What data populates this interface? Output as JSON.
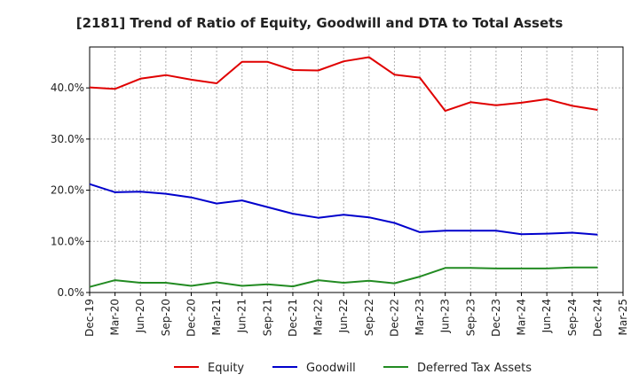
{
  "chart_data": {
    "type": "line",
    "title": "[2181]  Trend of Ratio of Equity, Goodwill and DTA to Total Assets",
    "xlabel": "",
    "ylabel": "",
    "ylim": [
      0,
      48
    ],
    "yticks": [
      0,
      10,
      20,
      30,
      40
    ],
    "ytick_labels": [
      "0.0%",
      "10.0%",
      "20.0%",
      "30.0%",
      "40.0%"
    ],
    "x_tick_labels": [
      "Dec-19",
      "Mar-20",
      "Jun-20",
      "Sep-20",
      "Dec-20",
      "Mar-21",
      "Jun-21",
      "Sep-21",
      "Dec-21",
      "Mar-22",
      "Jun-22",
      "Sep-22",
      "Dec-22",
      "Mar-23",
      "Jun-23",
      "Sep-23",
      "Dec-23",
      "Mar-24",
      "Jun-24",
      "Sep-24",
      "Dec-24",
      "Mar-25"
    ],
    "categories": [
      "Dec-19",
      "Mar-20",
      "Jun-20",
      "Sep-20",
      "Dec-20",
      "Mar-21",
      "Jun-21",
      "Sep-21",
      "Dec-21",
      "Mar-22",
      "Jun-22",
      "Sep-22",
      "Dec-22",
      "Mar-23",
      "Jun-23",
      "Sep-23",
      "Dec-23",
      "Mar-24",
      "Jun-24",
      "Sep-24",
      "Dec-24"
    ],
    "grid": true,
    "legend_position": "bottom",
    "series": [
      {
        "name": "Equity",
        "color": "#e00000",
        "values": [
          40.1,
          39.8,
          41.8,
          42.5,
          41.6,
          40.9,
          45.1,
          45.1,
          43.5,
          43.4,
          45.2,
          46.0,
          42.6,
          42.0,
          35.5,
          37.2,
          36.6,
          37.1,
          37.8,
          36.5,
          35.7
        ]
      },
      {
        "name": "Goodwill",
        "color": "#0000cc",
        "values": [
          21.2,
          19.6,
          19.7,
          19.3,
          18.6,
          17.4,
          18.0,
          16.7,
          15.4,
          14.6,
          15.2,
          14.7,
          13.6,
          11.8,
          12.1,
          12.1,
          12.1,
          11.4,
          11.5,
          11.7,
          11.3
        ]
      },
      {
        "name": "Deferred Tax Assets",
        "color": "#228b22",
        "values": [
          1.1,
          2.4,
          1.9,
          1.9,
          1.3,
          2.0,
          1.3,
          1.6,
          1.2,
          2.4,
          1.9,
          2.3,
          1.8,
          3.1,
          4.8,
          4.8,
          4.7,
          4.7,
          4.7,
          4.9,
          4.9
        ]
      }
    ]
  }
}
